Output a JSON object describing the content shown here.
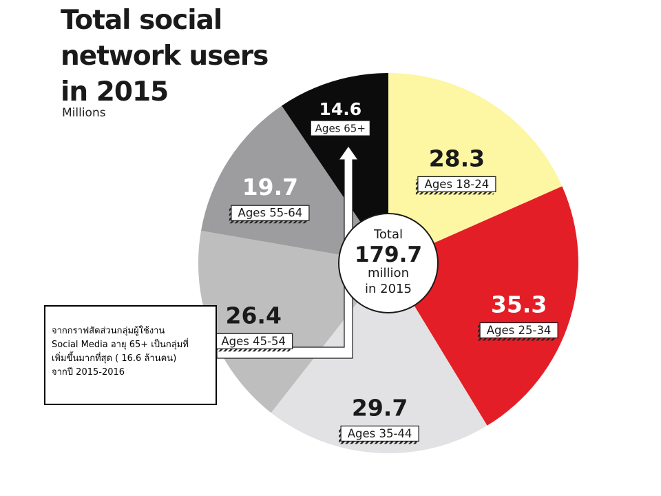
{
  "chart_data": {
    "type": "pie",
    "title": [
      "Total social",
      "network users",
      "in 2015"
    ],
    "subtitle": "Millions",
    "unit": "Millions",
    "slices": [
      {
        "label": "Ages 18-24",
        "value": 28.3,
        "value_text": "28.3",
        "color": "#fdf6a3"
      },
      {
        "label": "Ages 25-34",
        "value": 35.3,
        "value_text": "35.3",
        "color": "#e41e26"
      },
      {
        "label": "Ages 35-44",
        "value": 29.7,
        "value_text": "29.7",
        "color": "#e2e2e4"
      },
      {
        "label": "Ages 45-54",
        "value": 26.4,
        "value_text": "26.4",
        "color": "#bebebf"
      },
      {
        "label": "Ages 55-64",
        "value": 19.7,
        "value_text": "19.7",
        "color": "#9d9d9f"
      },
      {
        "label": "Ages 65+",
        "value": 14.6,
        "value_text": "14.6",
        "color": "#0c0c0c"
      }
    ],
    "center": {
      "line1": "Total",
      "value": "179.7",
      "line3": "million",
      "line4": "in 2015"
    },
    "total": 179.7
  },
  "annotation": {
    "lines": [
      "จากกราฟสัดส่วนกลุ่มผู้ใช้งาน",
      "Social Media อายุ 65+ เป็นกลุ่มที่",
      "เพิ่มขึ้นมากที่สุด ( 16.6 ล้านคน)",
      "จากปี 2015-2016"
    ],
    "highlighted_slice": "Ages 65+"
  },
  "colors": {
    "value_dark": "#1a1a1a",
    "value_light": "#ffffff",
    "label_box_fill": "#ffffff",
    "label_box_stroke": "#1a1a1a",
    "hatch": "#222222",
    "arrow": "#ffffff",
    "arrow_outline": "#1a1a1a"
  }
}
